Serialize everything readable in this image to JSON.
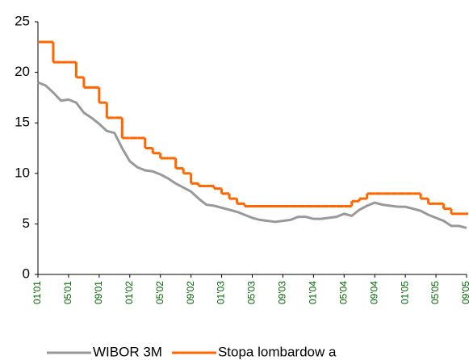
{
  "chart_data": {
    "type": "line",
    "categories": [
      "01'01",
      null,
      null,
      null,
      "05'01",
      null,
      null,
      null,
      "09'01",
      null,
      null,
      null,
      "01'02",
      null,
      null,
      null,
      "05'02",
      null,
      null,
      null,
      "09'02",
      null,
      null,
      null,
      "01'03",
      null,
      null,
      null,
      "05'03",
      null,
      null,
      null,
      "09'03",
      null,
      null,
      null,
      "01'04",
      null,
      null,
      null,
      "05'04",
      null,
      null,
      null,
      "09'04",
      null,
      null,
      null,
      "01'05",
      null,
      null,
      null,
      "05'05",
      null,
      null,
      null,
      "09'05"
    ],
    "series": [
      {
        "name": "WIBOR 3M",
        "color": "#999999",
        "step": false,
        "values": [
          19,
          18.7,
          18,
          17.2,
          17.3,
          17,
          16,
          15.5,
          14.9,
          14.2,
          14,
          12.5,
          11.2,
          10.6,
          10.3,
          10.2,
          9.9,
          9.5,
          9,
          8.6,
          8.2,
          7.5,
          6.9,
          6.8,
          6.6,
          6.4,
          6.2,
          5.9,
          5.6,
          5.4,
          5.3,
          5.2,
          5.3,
          5.4,
          5.7,
          5.7,
          5.5,
          5.5,
          5.6,
          5.7,
          6,
          5.8,
          6.4,
          6.8,
          7.1,
          6.9,
          6.8,
          6.7,
          6.7,
          6.5,
          6.3,
          5.9,
          5.6,
          5.3,
          4.8,
          4.8,
          4.6
        ]
      },
      {
        "name": "Stopa lombardow a",
        "color": "#ff6600",
        "step": true,
        "values": [
          23,
          23,
          21,
          21,
          21,
          19.5,
          18.5,
          18.5,
          17,
          15.5,
          15.5,
          13.5,
          13.5,
          13.5,
          12.5,
          12,
          11.5,
          11.5,
          10.5,
          10,
          9,
          8.75,
          8.75,
          8.5,
          8,
          7.5,
          7,
          6.75,
          6.75,
          6.75,
          6.75,
          6.75,
          6.75,
          6.75,
          6.75,
          6.75,
          6.75,
          6.75,
          6.75,
          6.75,
          6.75,
          7.25,
          7.5,
          8,
          8,
          8,
          8,
          8,
          8,
          8,
          7.5,
          7,
          7,
          6.5,
          6,
          6,
          6
        ]
      }
    ],
    "ylim": [
      0,
      25
    ],
    "yticks": [
      0,
      5,
      10,
      15,
      20,
      25
    ],
    "grid": false,
    "legend": "bottom"
  }
}
